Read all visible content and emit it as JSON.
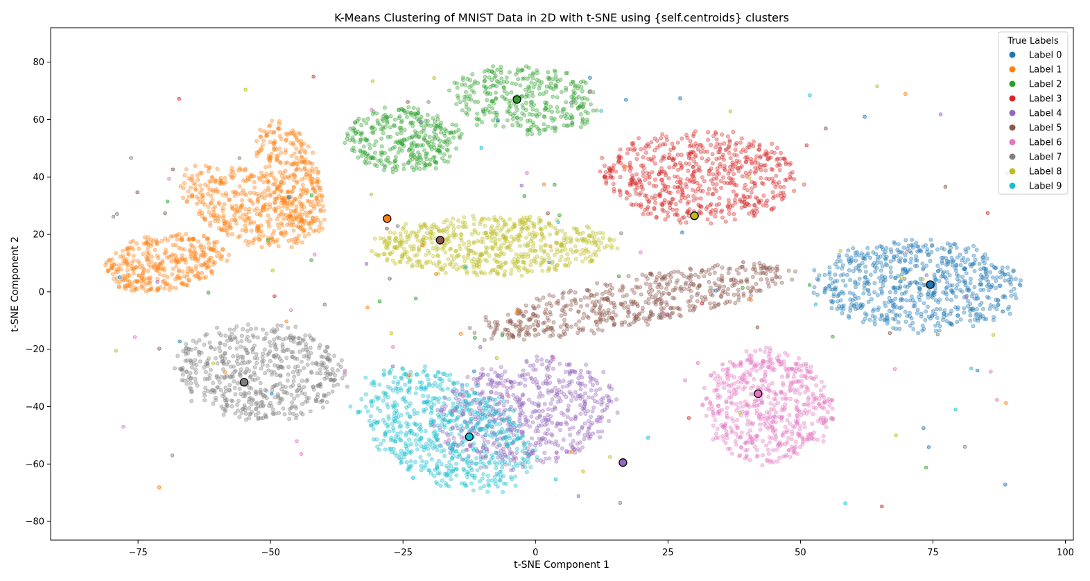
{
  "chart_data": {
    "type": "scatter",
    "title": "K-Means Clustering of MNIST Data in 2D with t-SNE using {self.centroids} clusters",
    "xlabel": "t-SNE Component 1",
    "ylabel": "t-SNE Component 2",
    "xlim": [
      -91.5,
      101.5
    ],
    "ylim": [
      -86.5,
      92
    ],
    "xticks": [
      -75,
      -50,
      -25,
      0,
      25,
      50,
      75,
      100
    ],
    "yticks": [
      -80,
      -60,
      -40,
      -20,
      0,
      20,
      40,
      60,
      80
    ],
    "tick_labels_x": [
      "−75",
      "−50",
      "−25",
      "0",
      "25",
      "50",
      "75",
      "100"
    ],
    "tick_labels_y": [
      "−80",
      "−60",
      "−40",
      "−20",
      "0",
      "20",
      "40",
      "60",
      "80"
    ],
    "grid": false,
    "legend": {
      "title": "True Labels",
      "placement": "top-right",
      "entries": [
        "Label 0",
        "Label 1",
        "Label 2",
        "Label 3",
        "Label 4",
        "Label 5",
        "Label 6",
        "Label 7",
        "Label 8",
        "Label 9"
      ]
    },
    "colors": [
      "#1f77b4",
      "#ff7f0e",
      "#2ca02c",
      "#d62728",
      "#9467bd",
      "#8c564b",
      "#e377c2",
      "#7f7f7f",
      "#bcbd22",
      "#17becf"
    ],
    "clusters": [
      {
        "label": "Label 0",
        "centroid": [
          74.5,
          2.5
        ],
        "blobs": [
          {
            "cx": 72,
            "cy": 2,
            "rx": 21,
            "ry": 17,
            "rot": -10,
            "n": 650
          }
        ]
      },
      {
        "label": "Label 1",
        "centroid": [
          -28,
          25.5
        ],
        "blobs": [
          {
            "cx": -70,
            "cy": 10,
            "rx": 13,
            "ry": 10,
            "rot": 30,
            "n": 350
          },
          {
            "cx": -55,
            "cy": 30,
            "rx": 10,
            "ry": 18,
            "rot": 35,
            "n": 350
          },
          {
            "cx": -46,
            "cy": 40,
            "rx": 6,
            "ry": 22,
            "rot": 10,
            "n": 300
          }
        ]
      },
      {
        "label": "Label 2",
        "centroid": [
          -3.5,
          67
        ],
        "blobs": [
          {
            "cx": -25,
            "cy": 53,
            "rx": 12,
            "ry": 12,
            "rot": 0,
            "n": 330
          },
          {
            "cx": -2,
            "cy": 67,
            "rx": 15,
            "ry": 13,
            "rot": -20,
            "n": 330
          }
        ]
      },
      {
        "label": "Label 3",
        "centroid": [
          30,
          26.5
        ],
        "blobs": [
          {
            "cx": 31,
            "cy": 40,
            "rx": 20,
            "ry": 17,
            "rot": -10,
            "n": 620
          }
        ]
      },
      {
        "label": "Label 4",
        "centroid": [
          16.5,
          -59.5
        ],
        "blobs": [
          {
            "cx": -2,
            "cy": -42,
            "rx": 17,
            "ry": 22,
            "rot": -30,
            "n": 620
          }
        ]
      },
      {
        "label": "Label 5",
        "centroid": [
          -18,
          18
        ],
        "blobs": [
          {
            "cx": 19,
            "cy": -3,
            "rx": 34,
            "ry": 9,
            "rot": 20,
            "n": 560
          }
        ]
      },
      {
        "label": "Label 6",
        "centroid": [
          42,
          -35.5
        ],
        "blobs": [
          {
            "cx": 44,
            "cy": -40,
            "rx": 13,
            "ry": 21,
            "rot": 0,
            "n": 560
          }
        ]
      },
      {
        "label": "Label 7",
        "centroid": [
          -55,
          -31.5
        ],
        "blobs": [
          {
            "cx": -52,
            "cy": -28,
            "rx": 17,
            "ry": 18,
            "rot": 20,
            "n": 560
          }
        ]
      },
      {
        "label": "Label 8",
        "centroid": [
          30,
          26.5
        ],
        "blobs": [
          {
            "cx": -8,
            "cy": 16,
            "rx": 24,
            "ry": 11,
            "rot": 0,
            "n": 620
          }
        ]
      },
      {
        "label": "Label 9",
        "centroid": [
          -12.5,
          -50.5
        ],
        "blobs": [
          {
            "cx": -17,
            "cy": -48,
            "rx": 15,
            "ry": 25,
            "rot": 30,
            "n": 640
          }
        ]
      }
    ]
  }
}
